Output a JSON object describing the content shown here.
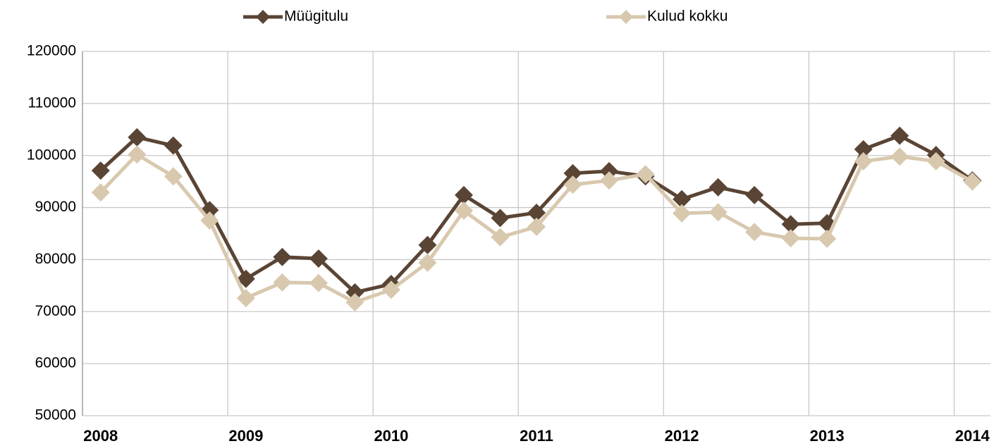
{
  "chart_data": {
    "type": "line",
    "categories": [
      "2008",
      null,
      null,
      null,
      "2009",
      null,
      null,
      null,
      "2010",
      null,
      null,
      null,
      "2011",
      null,
      null,
      null,
      "2012",
      null,
      null,
      null,
      "2013",
      null,
      null,
      null,
      "2014"
    ],
    "series": [
      {
        "name": "Müügitulu",
        "color": "#5a4434",
        "values": [
          97100,
          103500,
          101900,
          89500,
          76300,
          80500,
          80200,
          73700,
          75300,
          82800,
          92400,
          88000,
          89000,
          96600,
          97000,
          96000,
          91600,
          93900,
          92400,
          86800,
          87000,
          101200,
          103800,
          100100,
          95200
        ]
      },
      {
        "name": "Kulud kokku",
        "color": "#d8c8ae",
        "values": [
          92900,
          100200,
          96000,
          87500,
          72600,
          75600,
          75500,
          71800,
          74200,
          79400,
          89400,
          84300,
          86300,
          94400,
          95200,
          96400,
          88900,
          89100,
          85300,
          84100,
          84000,
          98900,
          99800,
          98900,
          95000
        ]
      }
    ],
    "ylim": [
      50000,
      120000
    ],
    "yticks": [
      50000,
      60000,
      70000,
      80000,
      90000,
      100000,
      110000,
      120000
    ],
    "grid": true,
    "legend": "top"
  }
}
